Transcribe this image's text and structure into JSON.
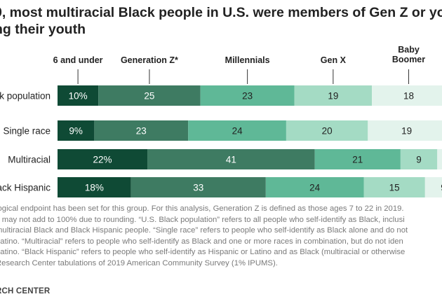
{
  "header": {
    "title_line1": "9, most multiracial Black people in U.S. were members of Gen Z or you",
    "title_line2": "ng their youth"
  },
  "chart_data": {
    "type": "bar",
    "orientation": "horizontal",
    "stacked": true,
    "legend_placement": "top",
    "categories": [
      "k population",
      "Single race",
      "Multiracial",
      "ack Hispanic"
    ],
    "series": [
      {
        "name": "6 and under",
        "color": "#0f4a35",
        "values": [
          10,
          9,
          22,
          18
        ],
        "labels": [
          "10%",
          "9%",
          "22%",
          "18%"
        ]
      },
      {
        "name": "Generation Z*",
        "color": "#3e7b62",
        "values": [
          25,
          23,
          41,
          33
        ],
        "labels": [
          "25",
          "23",
          "41",
          "33"
        ]
      },
      {
        "name": "Millennials",
        "color": "#5fb897",
        "values": [
          23,
          24,
          21,
          24
        ],
        "labels": [
          "23",
          "24",
          "21",
          "24"
        ]
      },
      {
        "name": "Gen X",
        "color": "#a4dbc4",
        "values": [
          19,
          20,
          9,
          15
        ],
        "labels": [
          "19",
          "20",
          "9",
          "15"
        ]
      },
      {
        "name": "Baby Boomer",
        "color": "#e3f3ec",
        "values": [
          18,
          19,
          6,
          9
        ],
        "labels": [
          "18",
          "19",
          "6",
          "9"
        ]
      },
      {
        "name": "",
        "color": "#c8c8c8",
        "values": [
          5,
          5,
          1,
          1
        ],
        "labels": [
          "",
          "",
          "",
          ""
        ]
      }
    ],
    "legend_labels": [
      "6 and under",
      "Generation Z*",
      "Millennials",
      "Gen X",
      "Baby\nBoomer"
    ],
    "xlim": [
      0,
      100
    ]
  },
  "notes": {
    "line1": "logical endpoint has been set for this group. For this analysis, Generation Z is defined as those ages 7 to 22 in 2019.",
    "line2": "s may not add to 100% due to rounding. “U.S. Black population” refers to all people who self-identify as Black, inclusi",
    "line3": "multiracial Black and Black Hispanic people. “Single race” refers to people who self-identify as Black alone and do not",
    "line4": "Latino. “Multiracial” refers to people who self-identify as Black and one or more races in combination, but do not iden",
    "line5": "Latino. “Black Hispanic” refers to people who self-identify as Hispanic or Latino and as Black (multiracial or otherwise",
    "line6": "Research Center tabulations of 2019 American Community Survey (1% IPUMS)."
  },
  "footer": {
    "source": "RCH CENTER"
  }
}
